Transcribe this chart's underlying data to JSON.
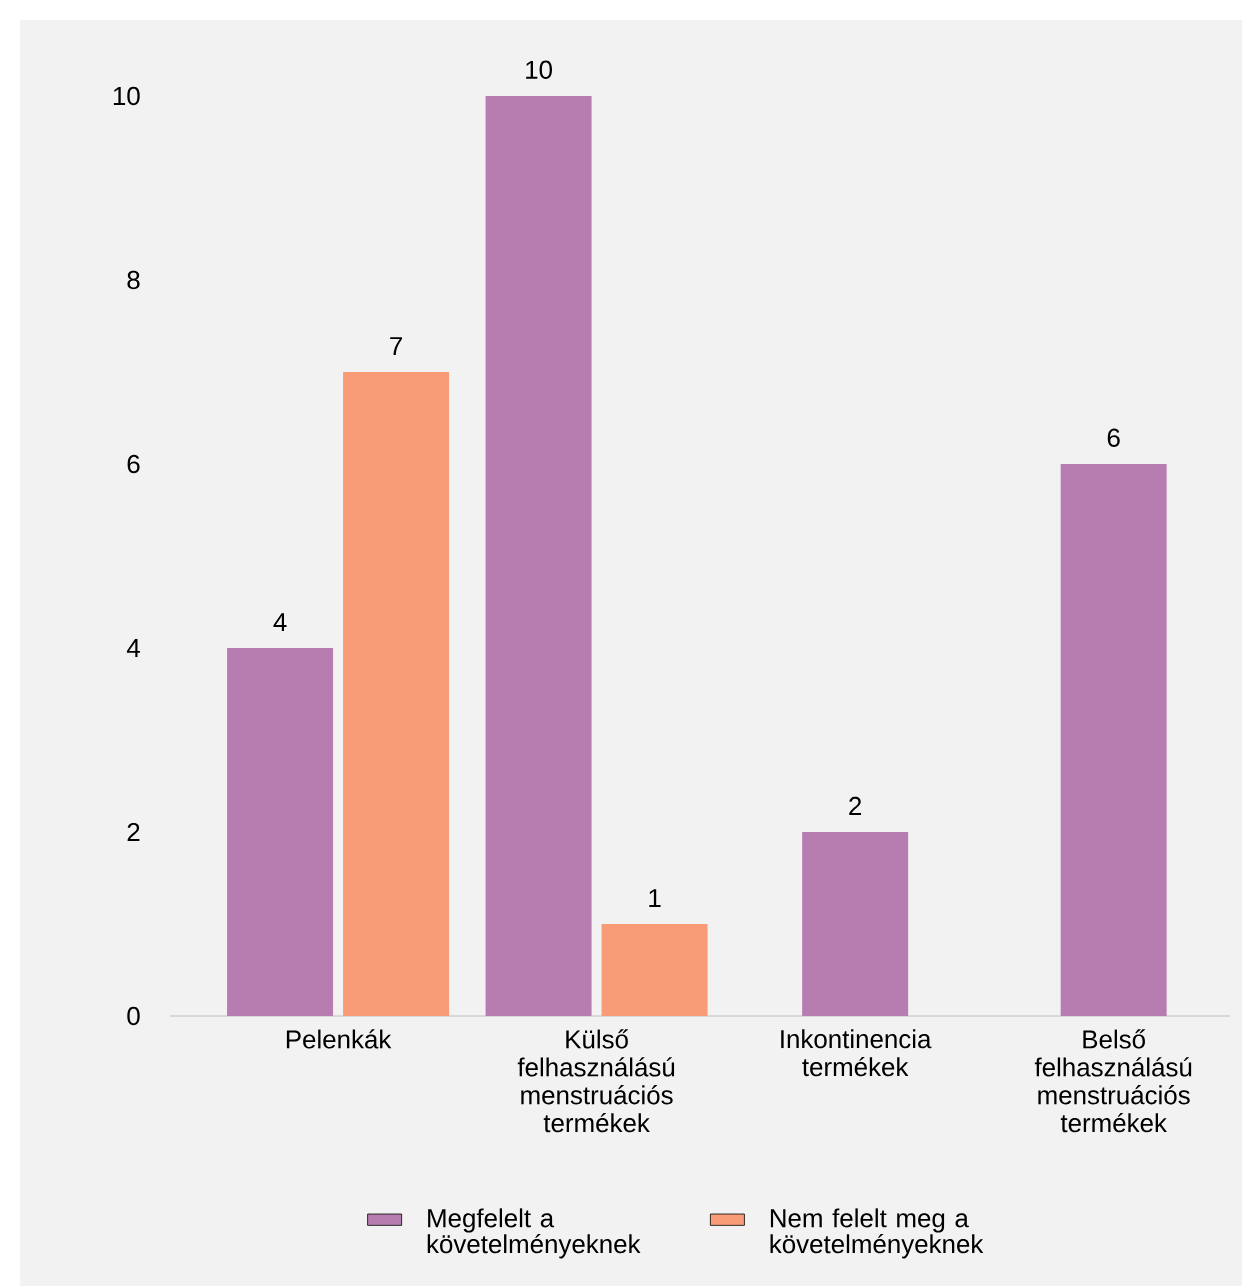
{
  "chart_data": {
    "type": "bar",
    "categories": [
      "Pelenkák",
      "Külső felhasználású menstruációs termékek",
      "Inkontinencia termékek",
      "Belső felhasználású menstruációs termékek"
    ],
    "series": [
      {
        "name": "Megfelelt a követelményeknek",
        "color": "#b87db0",
        "values": [
          4,
          10,
          2,
          6
        ]
      },
      {
        "name": "Nem felelt meg a követelményeknek",
        "color": "#f89c78",
        "values": [
          7,
          1,
          null,
          null
        ]
      }
    ],
    "ylim": [
      0,
      10
    ],
    "yticks": [
      0,
      2,
      4,
      6,
      8,
      10
    ],
    "data_labels": true,
    "legend": "bottom"
  }
}
